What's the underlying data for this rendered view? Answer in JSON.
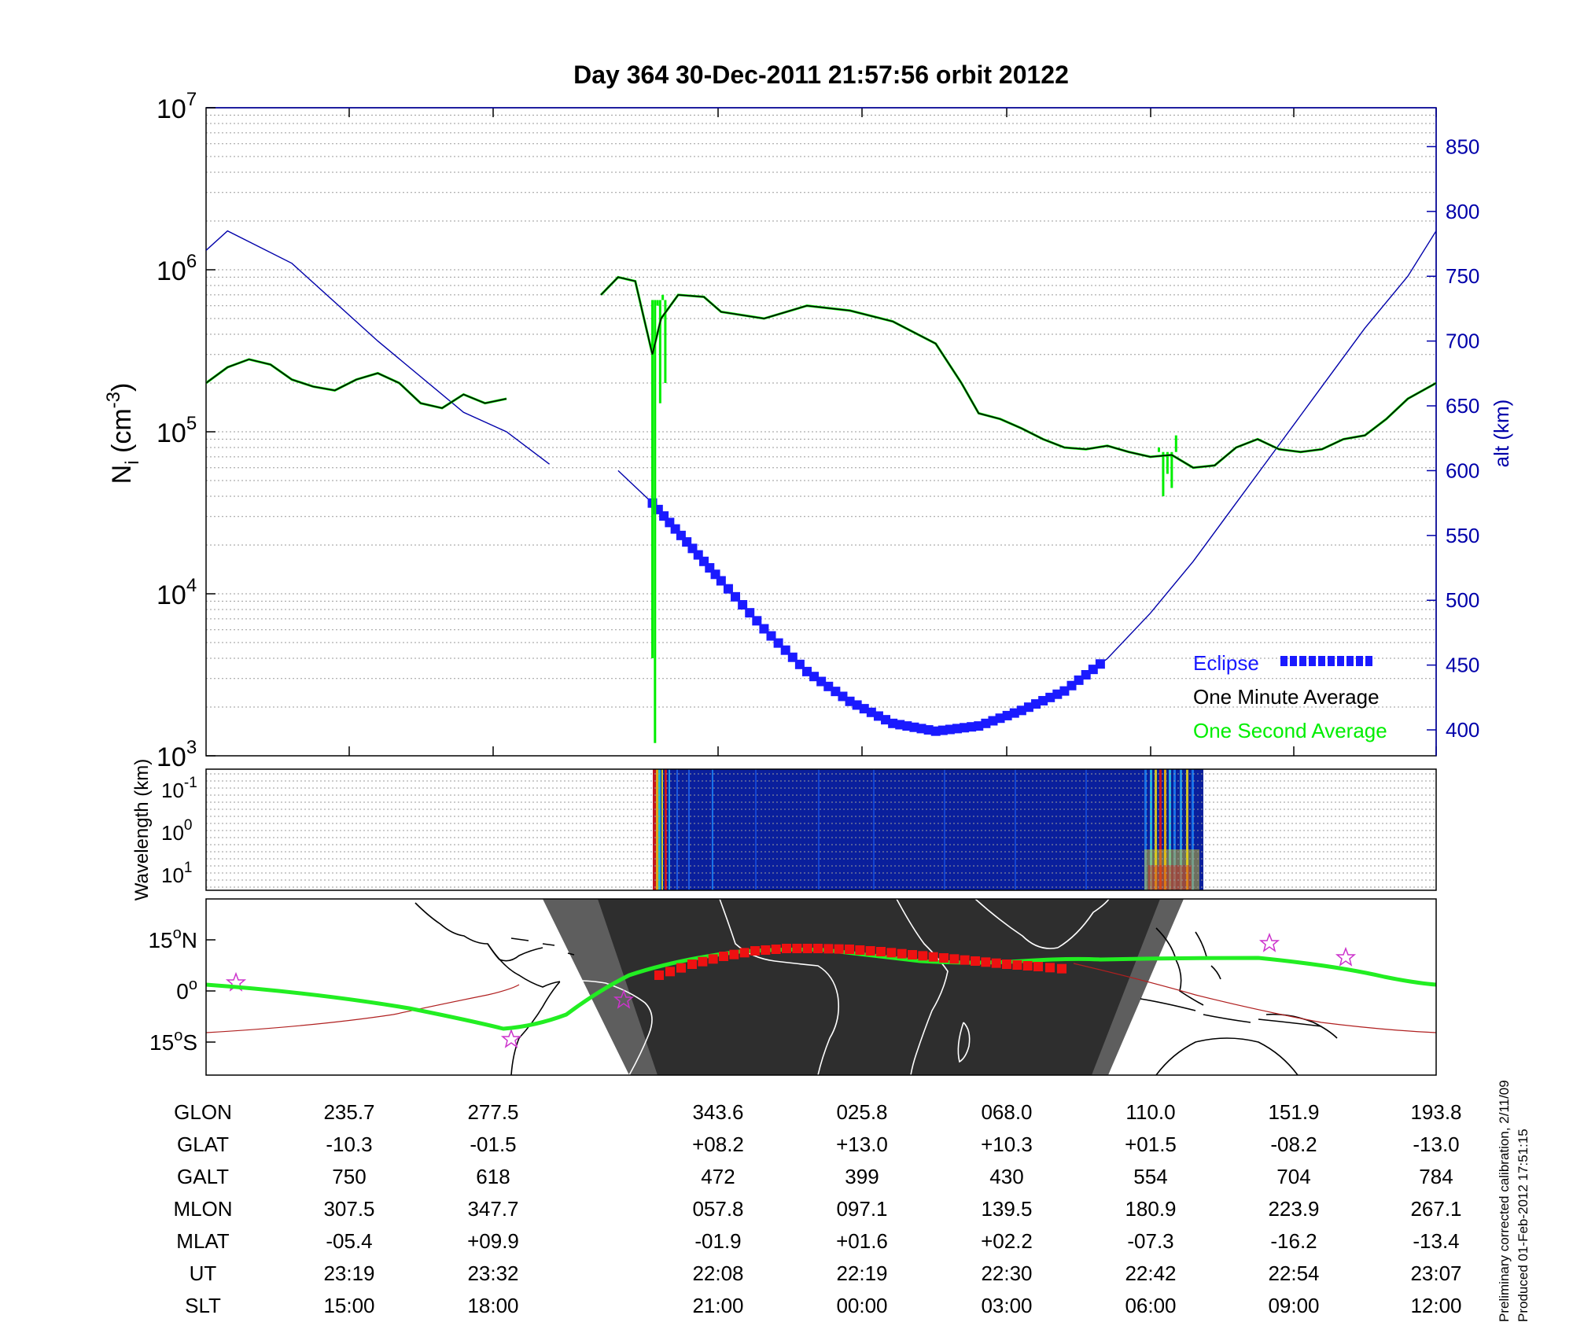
{
  "title": "Day 364  30-Dec-2011 21:57:56   orbit 20122",
  "colors": {
    "axis": "#000000",
    "altitude": "#0000aa",
    "eclipse": "#1a1aff",
    "one_minute": "#000000",
    "one_second": "#00ee00",
    "track": "#22ee22",
    "track_eclipse": "#ee1111",
    "night": "#2e2e2e",
    "twilight": "#5e5e5e",
    "magnetic_equator": "#b02020",
    "star": "#cc33cc"
  },
  "chart_data": [
    {
      "id": "density",
      "type": "line",
      "ylabel_main": "N",
      "ylabel_sub": "i",
      "ylabel_rest": " (cm",
      "ylabel_sup": "-3",
      "ylabel_end": ")",
      "yscale": "log",
      "ylim": [
        1000,
        10000000
      ],
      "ytick_base": "10",
      "ytick_exps": [
        "3",
        "4",
        "5",
        "6",
        "7"
      ],
      "y2label": "alt (km)",
      "y2lim": [
        380,
        880
      ],
      "y2ticks": [
        "400",
        "450",
        "500",
        "550",
        "600",
        "650",
        "700",
        "750",
        "800",
        "850"
      ],
      "x_time_range": [
        "23:07",
        "23:07"
      ],
      "legend": {
        "placement": "lower-right",
        "eclipse": "Eclipse",
        "one_minute": "One Minute Average",
        "one_second": "One Second Average"
      },
      "altitude_km": [
        [
          0.0,
          770
        ],
        [
          0.025,
          785
        ],
        [
          0.1,
          760
        ],
        [
          0.2,
          700
        ],
        [
          0.3,
          645
        ],
        [
          0.35,
          630
        ],
        [
          0.4,
          605
        ],
        [
          0.48,
          600
        ],
        [
          0.52,
          575
        ],
        [
          0.56,
          545
        ],
        [
          0.6,
          515
        ],
        [
          0.65,
          478
        ],
        [
          0.7,
          445
        ],
        [
          0.75,
          422
        ],
        [
          0.8,
          405
        ],
        [
          0.85,
          399
        ],
        [
          0.9,
          403
        ],
        [
          0.95,
          415
        ],
        [
          1.0,
          430
        ],
        [
          1.05,
          455
        ],
        [
          1.1,
          490
        ],
        [
          1.15,
          530
        ],
        [
          1.2,
          575
        ],
        [
          1.25,
          620
        ],
        [
          1.3,
          665
        ],
        [
          1.35,
          710
        ],
        [
          1.4,
          750
        ],
        [
          1.433,
          785
        ]
      ],
      "one_minute_avg": [
        [
          0.0,
          200000
        ],
        [
          0.025,
          250000
        ],
        [
          0.05,
          280000
        ],
        [
          0.075,
          260000
        ],
        [
          0.1,
          210000
        ],
        [
          0.125,
          190000
        ],
        [
          0.15,
          180000
        ],
        [
          0.175,
          210000
        ],
        [
          0.2,
          230000
        ],
        [
          0.225,
          200000
        ],
        [
          0.25,
          150000
        ],
        [
          0.275,
          140000
        ],
        [
          0.3,
          170000
        ],
        [
          0.325,
          150000
        ],
        [
          0.35,
          160000
        ],
        [
          0.46,
          700000
        ],
        [
          0.48,
          900000
        ],
        [
          0.5,
          850000
        ],
        [
          0.52,
          300000
        ],
        [
          0.53,
          500000
        ],
        [
          0.55,
          700000
        ],
        [
          0.58,
          680000
        ],
        [
          0.6,
          550000
        ],
        [
          0.65,
          500000
        ],
        [
          0.7,
          600000
        ],
        [
          0.75,
          560000
        ],
        [
          0.8,
          480000
        ],
        [
          0.85,
          350000
        ],
        [
          0.88,
          200000
        ],
        [
          0.9,
          130000
        ],
        [
          0.925,
          120000
        ],
        [
          0.95,
          105000
        ],
        [
          0.975,
          90000
        ],
        [
          1.0,
          80000
        ],
        [
          1.025,
          78000
        ],
        [
          1.05,
          82000
        ],
        [
          1.075,
          75000
        ],
        [
          1.1,
          70000
        ],
        [
          1.125,
          72000
        ],
        [
          1.15,
          60000
        ],
        [
          1.175,
          62000
        ],
        [
          1.2,
          80000
        ],
        [
          1.225,
          90000
        ],
        [
          1.25,
          78000
        ],
        [
          1.275,
          75000
        ],
        [
          1.3,
          78000
        ],
        [
          1.325,
          90000
        ],
        [
          1.35,
          95000
        ],
        [
          1.375,
          120000
        ],
        [
          1.4,
          160000
        ],
        [
          1.433,
          200000
        ]
      ],
      "one_second_spikes": [
        [
          0.52,
          4000
        ],
        [
          0.523,
          1200
        ],
        [
          0.526,
          600000
        ],
        [
          0.529,
          150000
        ],
        [
          0.532,
          700000
        ],
        [
          0.535,
          200000
        ],
        [
          0.538,
          650000
        ],
        [
          1.11,
          80000
        ],
        [
          1.115,
          40000
        ],
        [
          1.12,
          55000
        ],
        [
          1.125,
          45000
        ],
        [
          1.13,
          95000
        ]
      ]
    },
    {
      "id": "wavelength",
      "type": "heatmap",
      "ylabel": "Wavelength (km)",
      "yscale": "log",
      "ytick_base": "10",
      "ytick_exps": [
        "-1",
        "0",
        "1"
      ]
    },
    {
      "id": "map",
      "type": "map",
      "ytick_labels": [
        {
          "value": "15",
          "degree_sign": "o",
          "hemisphere": "N"
        },
        {
          "value": "0",
          "degree_sign": "o",
          "hemisphere": ""
        },
        {
          "value": "15",
          "degree_sign": "o",
          "hemisphere": "S"
        }
      ]
    }
  ],
  "ephemeris": {
    "rows": [
      {
        "label": "GLON",
        "values": [
          "235.7",
          "277.5",
          "343.6",
          "025.8",
          "068.0",
          "110.0",
          "151.9",
          "193.8"
        ]
      },
      {
        "label": "GLAT",
        "values": [
          "-10.3",
          "-01.5",
          "+08.2",
          "+13.0",
          "+10.3",
          "+01.5",
          "-08.2",
          "-13.0"
        ]
      },
      {
        "label": "GALT",
        "values": [
          "750",
          "618",
          "472",
          "399",
          "430",
          "554",
          "704",
          "784"
        ]
      },
      {
        "label": "MLON",
        "values": [
          "307.5",
          "347.7",
          "057.8",
          "097.1",
          "139.5",
          "180.9",
          "223.9",
          "267.1"
        ]
      },
      {
        "label": "MLAT",
        "values": [
          "-05.4",
          "+09.9",
          "-01.9",
          "+01.6",
          "+02.2",
          "-07.3",
          "-16.2",
          "-13.4"
        ]
      },
      {
        "label": "UT",
        "values": [
          "23:19",
          "23:32",
          "22:08",
          "22:19",
          "22:30",
          "22:42",
          "22:54",
          "23:07"
        ]
      },
      {
        "label": "SLT",
        "values": [
          "15:00",
          "18:00",
          "21:00",
          "00:00",
          "03:00",
          "06:00",
          "09:00",
          "12:00"
        ]
      }
    ]
  },
  "footnote": {
    "line1": "Preliminary corrected calibration, 2/11/09",
    "line2": "Produced 01-Feb-2012 17:51:15"
  }
}
